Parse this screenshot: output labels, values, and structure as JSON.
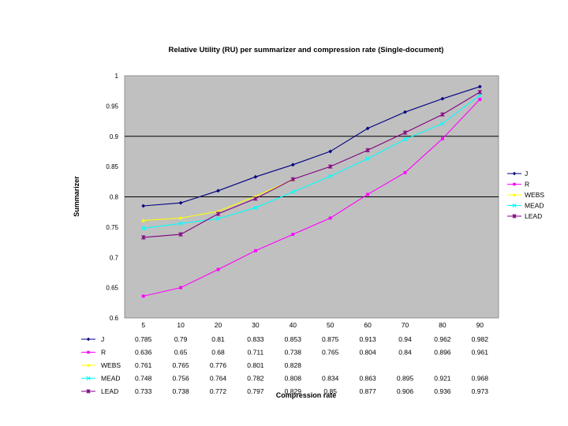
{
  "chart_data": {
    "type": "line",
    "title": "Relative Utility (RU) per summarizer and compression rate (Single-document)",
    "xlabel": "Compression rate",
    "ylabel": "Summarizer",
    "ylim": [
      0.6,
      1
    ],
    "y_ticks": [
      "0.6",
      "0.65",
      "0.7",
      "0.75",
      "0.8",
      "0.85",
      "0.9",
      "0.95",
      "1"
    ],
    "categories": [
      "5",
      "10",
      "20",
      "30",
      "40",
      "50",
      "60",
      "70",
      "80",
      "90"
    ],
    "legend_position": "right",
    "series": [
      {
        "name": "J",
        "color": "#000080",
        "marker": "diamond",
        "values": [
          0.785,
          0.79,
          0.81,
          0.833,
          0.853,
          0.875,
          0.913,
          0.94,
          0.962,
          0.982
        ],
        "labels": [
          "0.785",
          "0.79",
          "0.81",
          "0.833",
          "0.853",
          "0.875",
          "0.913",
          "0.94",
          "0.962",
          "0.982"
        ]
      },
      {
        "name": "R",
        "color": "#ff00ff",
        "marker": "square",
        "values": [
          0.636,
          0.65,
          0.68,
          0.711,
          0.738,
          0.765,
          0.804,
          0.84,
          0.896,
          0.961
        ],
        "labels": [
          "0.636",
          "0.65",
          "0.68",
          "0.711",
          "0.738",
          "0.765",
          "0.804",
          "0.84",
          "0.896",
          "0.961"
        ]
      },
      {
        "name": "WEBS",
        "color": "#ffff00",
        "marker": "triangle",
        "values": [
          0.761,
          0.765,
          0.776,
          0.801,
          0.828,
          null,
          null,
          null,
          null,
          null
        ],
        "labels": [
          "0.761",
          "0.765",
          "0.776",
          "0.801",
          "0.828",
          "",
          "",
          "",
          "",
          ""
        ]
      },
      {
        "name": "MEAD",
        "color": "#00ffff",
        "marker": "x",
        "values": [
          0.748,
          0.756,
          0.764,
          0.782,
          0.808,
          0.834,
          0.863,
          0.895,
          0.921,
          0.968
        ],
        "labels": [
          "0.748",
          "0.756",
          "0.764",
          "0.782",
          "0.808",
          "0.834",
          "0.863",
          "0.895",
          "0.921",
          "0.968"
        ]
      },
      {
        "name": "LEAD",
        "color": "#800080",
        "marker": "star",
        "values": [
          0.733,
          0.738,
          0.772,
          0.797,
          0.829,
          0.85,
          0.877,
          0.906,
          0.936,
          0.973
        ],
        "labels": [
          "0.733",
          "0.738",
          "0.772",
          "0.797",
          "0.829",
          "0.85",
          "0.877",
          "0.906",
          "0.936",
          "0.973"
        ]
      }
    ]
  }
}
